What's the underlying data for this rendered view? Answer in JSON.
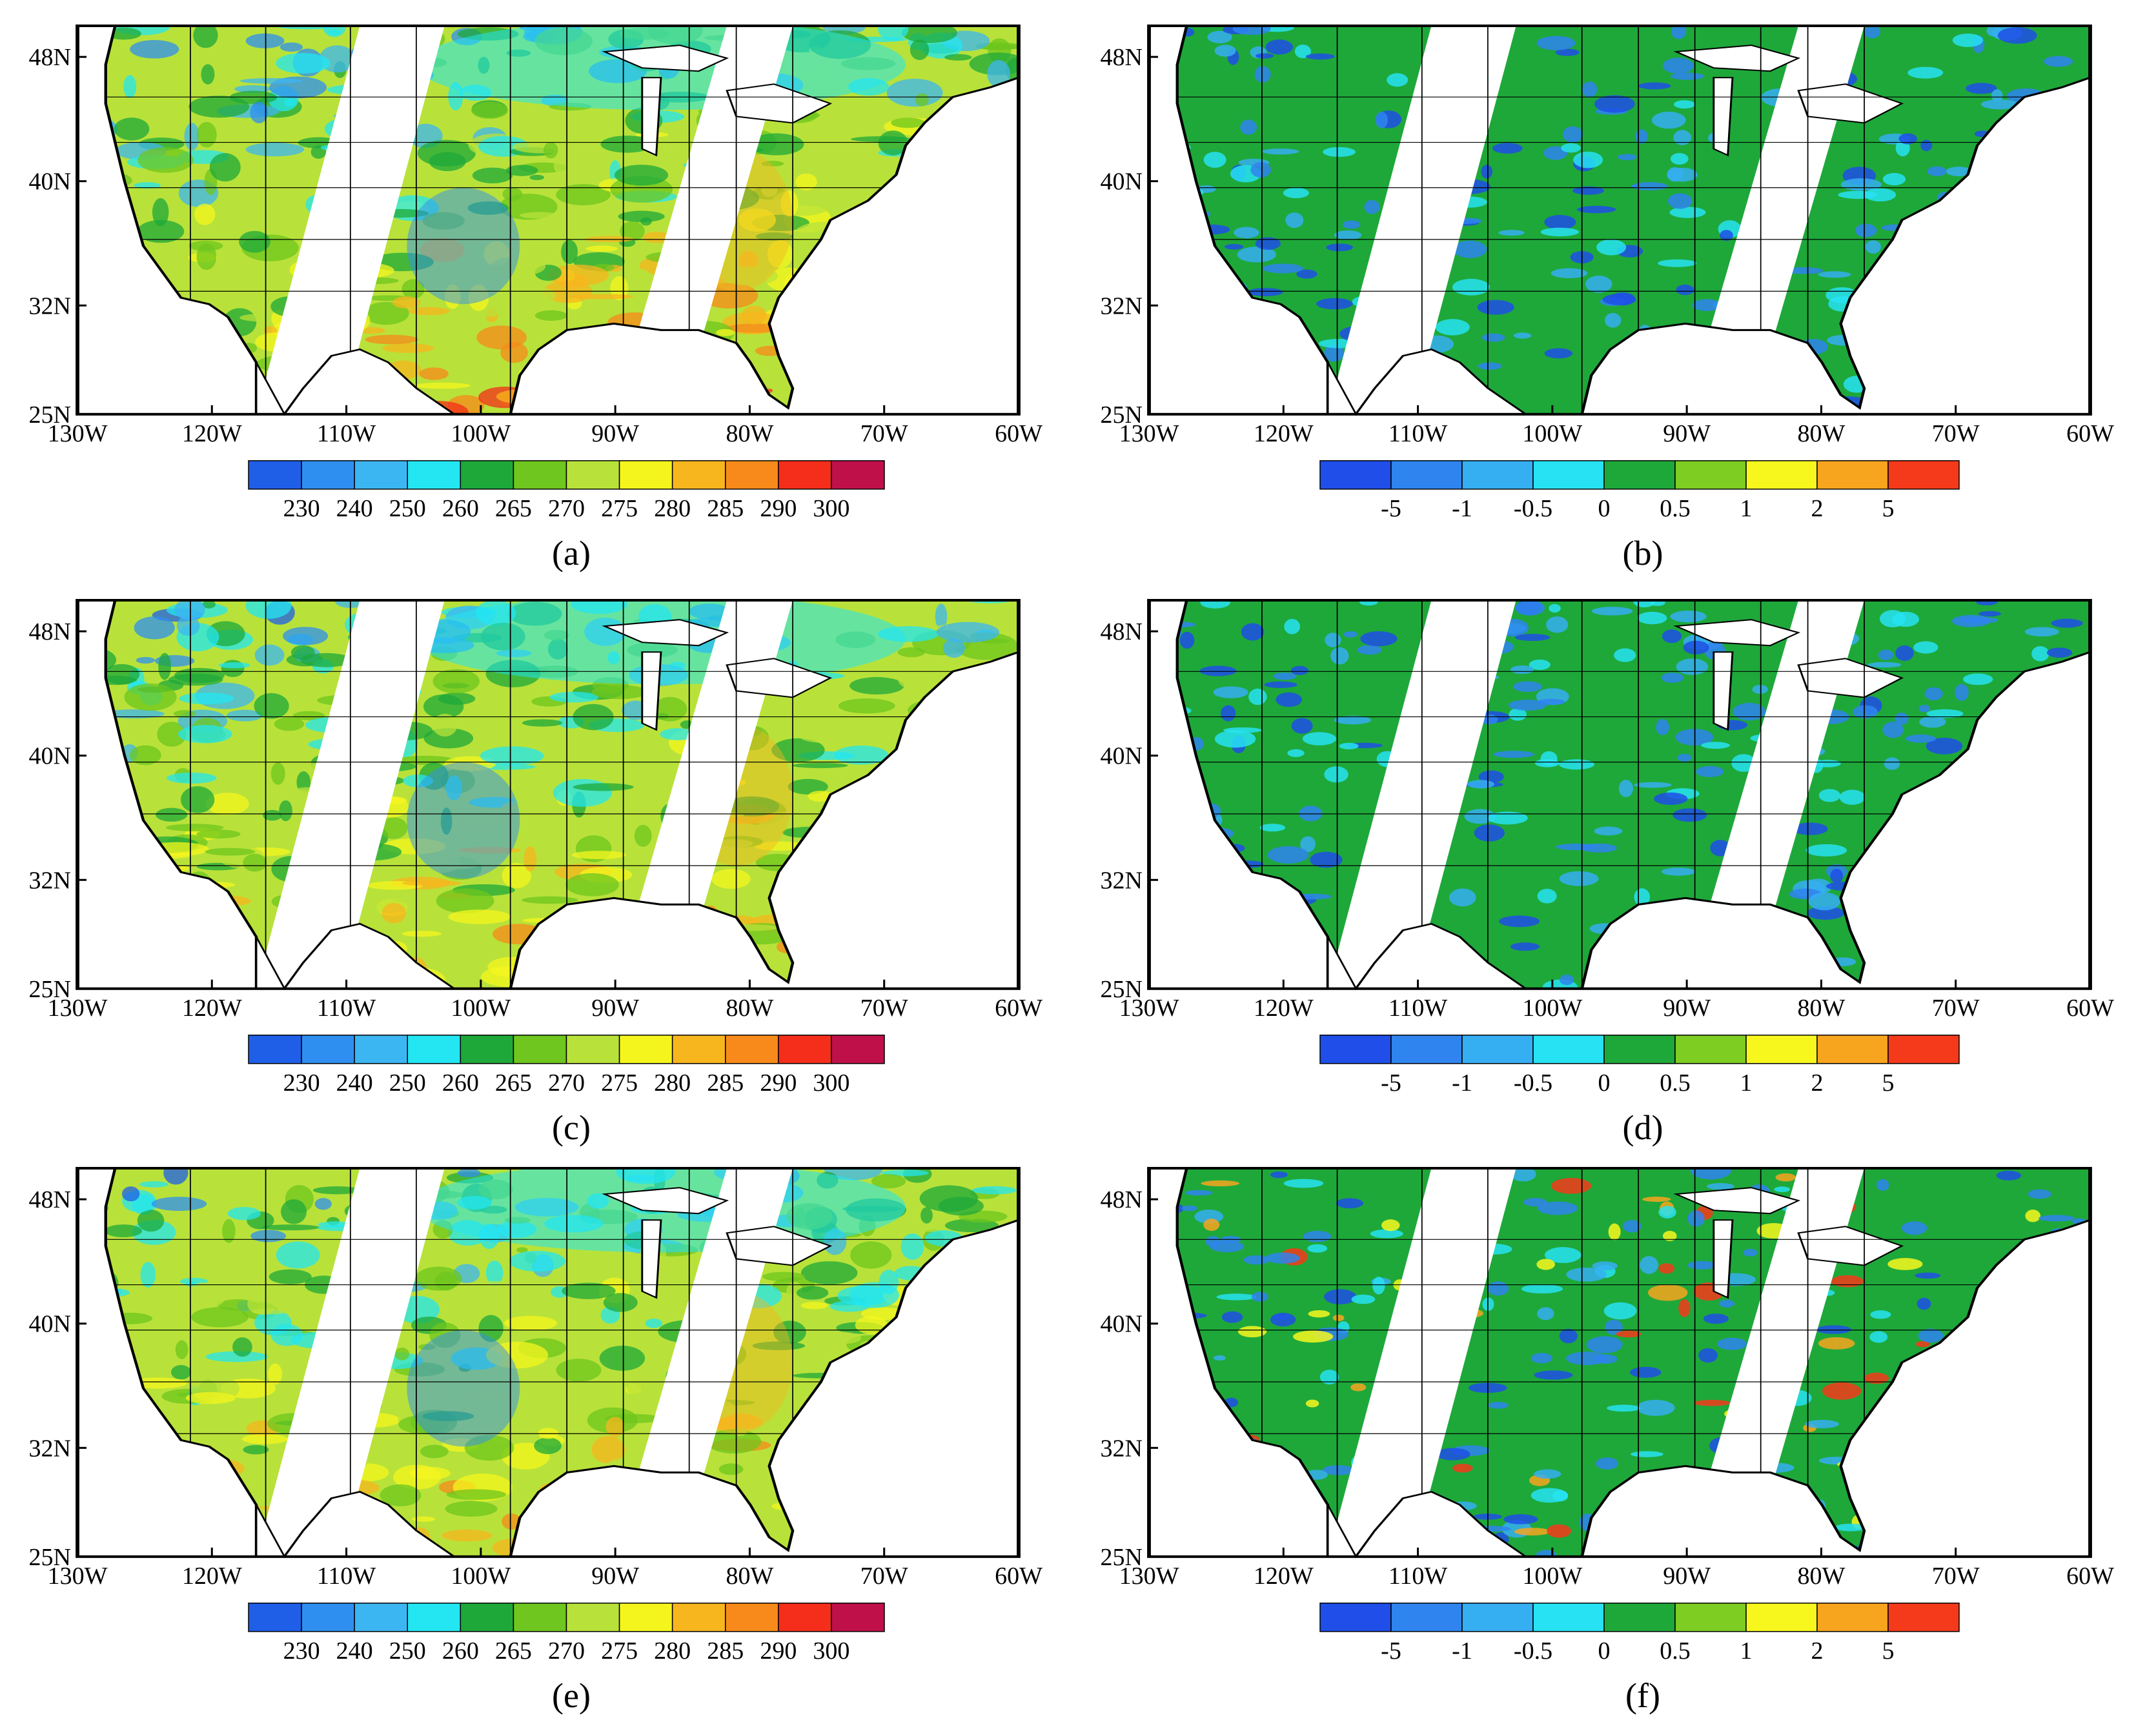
{
  "figure": {
    "panels": [
      {
        "label": "(a)",
        "type": "brightness_temperature",
        "colormap": "temperature"
      },
      {
        "label": "(b)",
        "type": "difference",
        "colormap": "difference"
      },
      {
        "label": "(c)",
        "type": "brightness_temperature",
        "colormap": "temperature"
      },
      {
        "label": "(d)",
        "type": "difference",
        "colormap": "difference"
      },
      {
        "label": "(e)",
        "type": "brightness_temperature",
        "colormap": "temperature"
      },
      {
        "label": "(f)",
        "type": "difference",
        "colormap": "difference"
      }
    ],
    "map_extent": {
      "lon_min": -130,
      "lon_max": -60,
      "lat_min": 25,
      "lat_max": 50
    },
    "lat_ticks": [
      "25N",
      "32N",
      "40N",
      "48N"
    ],
    "lon_ticks": [
      "130W",
      "120W",
      "110W",
      "100W",
      "90W",
      "80W",
      "70W",
      "60W"
    ],
    "colorbars": {
      "temperature": {
        "colors": [
          "#1f5fe8",
          "#2f8ff0",
          "#3cb6f2",
          "#23e6f2",
          "#1ea83a",
          "#6ec61e",
          "#b8e23a",
          "#f5f51e",
          "#f7b51e",
          "#f78a1a",
          "#f42e1a",
          "#c0104a"
        ],
        "labels": [
          "230",
          "240",
          "250",
          "260",
          "265",
          "270",
          "275",
          "280",
          "285",
          "290",
          "300"
        ]
      },
      "difference": {
        "colors": [
          "#1f4fe8",
          "#2f84f0",
          "#36aef2",
          "#27e2f2",
          "#1ea83a",
          "#7dcd22",
          "#f7f71e",
          "#f7a51e",
          "#f43a1a"
        ],
        "labels": [
          "-5",
          "-1",
          "-0.5",
          "0",
          "0.5",
          "1",
          "2",
          "5"
        ]
      }
    },
    "colors": {
      "land_base_temperature": "#b8e23a",
      "land_base_difference": "#1ea83a",
      "swath_gap": "#ffffff",
      "boundary": "#000000"
    }
  }
}
